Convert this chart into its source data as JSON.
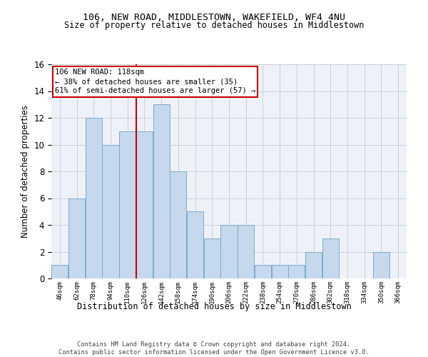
{
  "title": "106, NEW ROAD, MIDDLESTOWN, WAKEFIELD, WF4 4NU",
  "subtitle": "Size of property relative to detached houses in Middlestown",
  "xlabel": "Distribution of detached houses by size in Middlestown",
  "ylabel": "Number of detached properties",
  "footer_line1": "Contains HM Land Registry data © Crown copyright and database right 2024.",
  "footer_line2": "Contains public sector information licensed under the Open Government Licence v3.0.",
  "bar_categories": [
    "46sqm",
    "62sqm",
    "78sqm",
    "94sqm",
    "110sqm",
    "126sqm",
    "142sqm",
    "158sqm",
    "174sqm",
    "190sqm",
    "206sqm",
    "222sqm",
    "238sqm",
    "254sqm",
    "270sqm",
    "286sqm",
    "302sqm",
    "318sqm",
    "334sqm",
    "350sqm",
    "366sqm"
  ],
  "bar_values": [
    1,
    6,
    12,
    10,
    11,
    11,
    13,
    8,
    5,
    3,
    4,
    4,
    1,
    1,
    1,
    2,
    3,
    0,
    0,
    2,
    0
  ],
  "bar_color": "#c5d8ed",
  "bar_edgecolor": "#7aabcf",
  "grid_color": "#c8d0d8",
  "vline_x_category_index": 4,
  "annotation_text": "106 NEW ROAD: 118sqm\n← 38% of detached houses are smaller (35)\n61% of semi-detached houses are larger (57) →",
  "annotation_box_color": "#cc0000",
  "ylim": [
    0,
    16
  ],
  "yticks": [
    0,
    2,
    4,
    6,
    8,
    10,
    12,
    14,
    16
  ],
  "background_color": "#eef2f8",
  "title_fontsize": 9.5,
  "subtitle_fontsize": 8.5
}
